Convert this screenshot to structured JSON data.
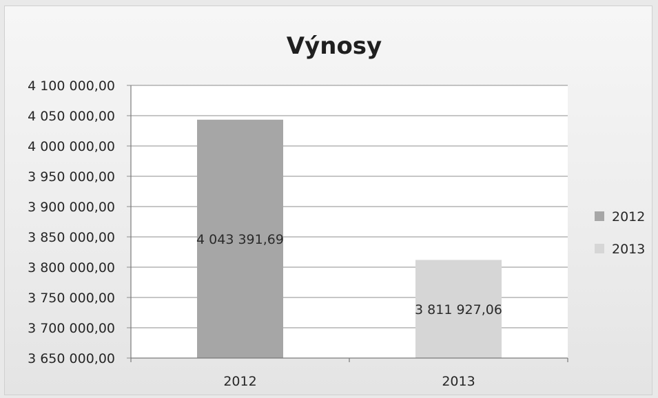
{
  "chart_data": {
    "type": "bar",
    "title": "Výnosy",
    "categories": [
      "2012",
      "2013"
    ],
    "values": [
      4043391.69,
      3811927.06
    ],
    "data_labels": [
      "4 043 391,69",
      "3 811 927,06"
    ],
    "ylim": [
      3650000,
      4100000
    ],
    "yticks": [
      3650000,
      3700000,
      3750000,
      3800000,
      3850000,
      3900000,
      3950000,
      4000000,
      4050000,
      4100000
    ],
    "ytick_labels": [
      "3 650 000,00",
      "3 700 000,00",
      "3 750 000,00",
      "3 800 000,00",
      "3 850 000,00",
      "3 900 000,00",
      "3 950 000,00",
      "4 000 000,00",
      "4 050 000,00",
      "4 100 000,00"
    ],
    "grid": true,
    "legend": {
      "placement": "right",
      "entries": [
        "2012",
        "2013"
      ]
    },
    "colors": [
      "#a6a6a6",
      "#d6d6d6"
    ]
  }
}
